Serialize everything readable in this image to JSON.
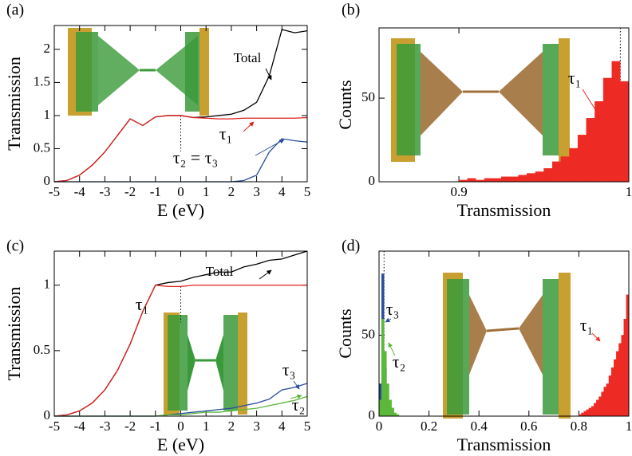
{
  "chart_data": [
    {
      "type": "line",
      "label": "(a)",
      "xlabel": "E (eV)",
      "ylabel": "Transmission",
      "x": [
        -5,
        -4.5,
        -4,
        -3.5,
        -3,
        -2.5,
        -2,
        -1.5,
        -1,
        -0.5,
        0,
        0.5,
        1,
        1.5,
        2,
        2.5,
        3,
        3.5,
        4,
        4.5,
        5
      ],
      "series": [
        {
          "name": "Total",
          "color": "#000000",
          "values": [
            0,
            0.02,
            0.1,
            0.25,
            0.45,
            0.7,
            0.95,
            0.85,
            0.98,
            1.0,
            1.0,
            0.97,
            0.98,
            1.0,
            1.02,
            1.08,
            1.2,
            1.6,
            2.3,
            2.25,
            2.28
          ]
        },
        {
          "name": "τ₁",
          "color": "#e0201c",
          "values": [
            0,
            0.02,
            0.1,
            0.25,
            0.45,
            0.7,
            0.95,
            0.85,
            0.98,
            1.0,
            1.0,
            0.97,
            0.96,
            0.95,
            0.95,
            0.96,
            0.96,
            0.96,
            0.96,
            0.96,
            0.97
          ]
        },
        {
          "name": "τ₂ = τ₃",
          "color": "#2a4d9c",
          "values": [
            0,
            0,
            0,
            0,
            0,
            0,
            0,
            0,
            0,
            0,
            0,
            0,
            0,
            0,
            0,
            0.02,
            0.1,
            0.45,
            0.65,
            0.62,
            0.6
          ]
        }
      ],
      "xlim": [
        -5,
        5
      ],
      "ylim": [
        0,
        2.36
      ],
      "xticks": [
        -5,
        -4,
        -3,
        -2,
        -1,
        0,
        1,
        2,
        3,
        4,
        5
      ],
      "yticks": [
        0,
        0.5,
        1,
        1.5,
        2
      ],
      "vline": 0
    },
    {
      "type": "histogram",
      "label": "(b)",
      "xlabel": "Transmission",
      "ylabel": "Counts",
      "series": [
        {
          "name": "τ₁",
          "color": "#ee2a24",
          "bins": [
            0.9,
            0.905,
            0.91,
            0.915,
            0.92,
            0.925,
            0.93,
            0.935,
            0.94,
            0.945,
            0.95,
            0.955,
            0.96,
            0.965,
            0.97,
            0.975,
            0.98,
            0.985,
            0.99,
            0.995,
            1.0
          ],
          "values": [
            1,
            2,
            1,
            2,
            2,
            3,
            3,
            4,
            5,
            6,
            8,
            12,
            15,
            20,
            28,
            38,
            48,
            62,
            72,
            60
          ]
        }
      ],
      "xlim": [
        0.853,
        1
      ],
      "ylim": [
        0,
        92
      ],
      "xticks": [
        0.9,
        1
      ],
      "yticks": [
        0,
        50
      ],
      "vline": 0.995
    },
    {
      "type": "line",
      "label": "(c)",
      "xlabel": "E (eV)",
      "ylabel": "Transmission",
      "x": [
        -5,
        -4.5,
        -4,
        -3.5,
        -3,
        -2.5,
        -2,
        -1.5,
        -1,
        -0.5,
        0,
        0.5,
        1,
        1.5,
        2,
        2.5,
        3,
        3.5,
        4,
        4.5,
        5
      ],
      "series": [
        {
          "name": "Total",
          "color": "#000000",
          "values": [
            0,
            0.01,
            0.04,
            0.1,
            0.2,
            0.35,
            0.55,
            0.8,
            1.0,
            1.02,
            1.03,
            1.06,
            1.08,
            1.1,
            1.1,
            1.14,
            1.16,
            1.19,
            1.2,
            1.23,
            1.26
          ]
        },
        {
          "name": "τ₁",
          "color": "#e0201c",
          "values": [
            0,
            0.01,
            0.04,
            0.1,
            0.2,
            0.35,
            0.55,
            0.8,
            1.0,
            0.99,
            0.99,
            1.0,
            1.0,
            1.0,
            1.0,
            1.0,
            1.0,
            1.0,
            1.0,
            1.0,
            1.0
          ]
        },
        {
          "name": "τ₃",
          "color": "#2a4d9c",
          "values": [
            0,
            0,
            0,
            0,
            0,
            0,
            0,
            0,
            0,
            0.01,
            0.02,
            0.03,
            0.04,
            0.05,
            0.06,
            0.08,
            0.1,
            0.13,
            0.2,
            0.22,
            0.25
          ]
        },
        {
          "name": "τ₂",
          "color": "#5cb83a",
          "values": [
            0,
            0,
            0,
            0,
            0,
            0,
            0,
            0,
            0,
            0.01,
            0.01,
            0.02,
            0.03,
            0.03,
            0.04,
            0.05,
            0.06,
            0.08,
            0.1,
            0.12,
            0.15
          ]
        }
      ],
      "xlim": [
        -5,
        5
      ],
      "ylim": [
        0,
        1.26
      ],
      "xticks": [
        -5,
        -4,
        -3,
        -2,
        -1,
        0,
        1,
        2,
        3,
        4,
        5
      ],
      "yticks": [
        0,
        0.5,
        1
      ],
      "vline": 0
    },
    {
      "type": "histogram",
      "label": "(d)",
      "xlabel": "Transmission",
      "ylabel": "Counts",
      "series": [
        {
          "name": "τ₃",
          "color": "#2a4d9c",
          "bins": [
            0,
            0.01,
            0.02,
            0.03,
            0.04,
            0.05
          ],
          "values": [
            20,
            88,
            30,
            8,
            2
          ]
        },
        {
          "name": "τ₂",
          "color": "#5cb83a",
          "bins": [
            0,
            0.01,
            0.02,
            0.03,
            0.04,
            0.05,
            0.06,
            0.07,
            0.08
          ],
          "values": [
            10,
            60,
            40,
            20,
            10,
            5,
            2,
            1
          ]
        },
        {
          "name": "τ₁",
          "color": "#ee2a24",
          "bins": [
            0.8,
            0.81,
            0.82,
            0.83,
            0.84,
            0.85,
            0.86,
            0.87,
            0.88,
            0.89,
            0.9,
            0.91,
            0.92,
            0.93,
            0.94,
            0.95,
            0.96,
            0.97,
            0.98,
            0.99,
            1.0
          ],
          "values": [
            1,
            2,
            3,
            4,
            5,
            6,
            8,
            10,
            12,
            15,
            18,
            20,
            25,
            30,
            35,
            40,
            45,
            50,
            60,
            75
          ]
        }
      ],
      "xlim": [
        0,
        1
      ],
      "ylim": [
        0,
        102
      ],
      "xticks": [
        0,
        0.2,
        0.4,
        0.6,
        0.8,
        1
      ],
      "yticks": [
        0,
        50
      ],
      "vline": 0.02
    }
  ]
}
